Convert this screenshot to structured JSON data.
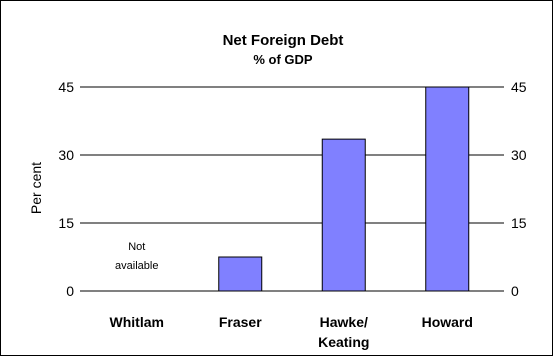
{
  "chart_data": {
    "type": "bar",
    "title": "Net Foreign Debt",
    "subtitle": "% of GDP",
    "ylabel": "Per cent",
    "ylim": [
      0,
      45
    ],
    "yticks": [
      "0",
      "15",
      "30",
      "45"
    ],
    "ytick_values": [
      0,
      15,
      30,
      45
    ],
    "categories": [
      [
        "Whitlam"
      ],
      [
        "Fraser"
      ],
      [
        "Hawke/",
        "Keating"
      ],
      [
        "Howard"
      ]
    ],
    "values": [
      null,
      7.5,
      33.5,
      45
    ],
    "annotations": [
      {
        "category_index": 0,
        "lines": [
          "Not",
          "available"
        ]
      }
    ],
    "bar_color": "#8080ff",
    "grid": true,
    "right_axis": true
  }
}
